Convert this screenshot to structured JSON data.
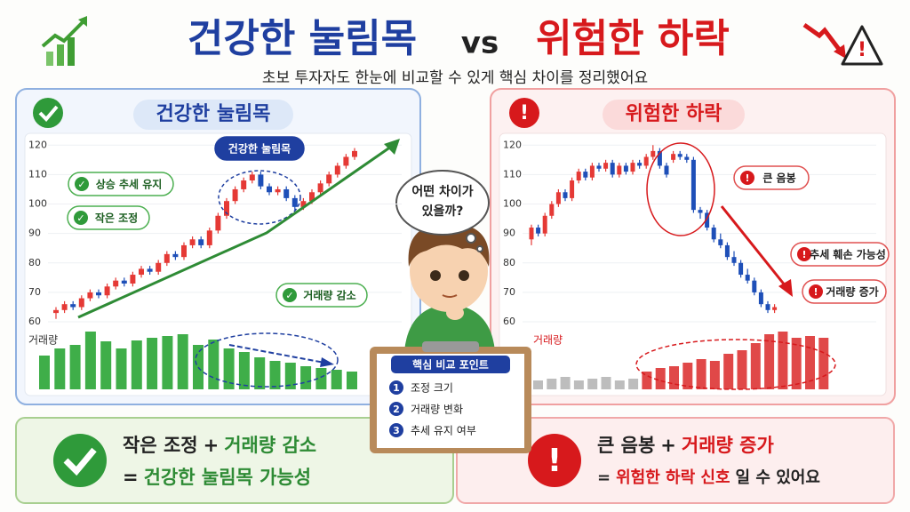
{
  "header": {
    "title_left": "건강한 눌림목",
    "vs": "vs",
    "title_right": "위험한 하락",
    "subtitle": "초보 투자자도 한눈에 비교할 수 있게 핵심 차이를 정리했어요"
  },
  "chart_data": [
    {
      "type": "candlestick",
      "title": "건강한 눌림목",
      "ylim": [
        57,
        124
      ],
      "yticks": [
        60,
        70,
        80,
        90,
        100,
        110,
        120
      ],
      "up_color": "#e53935",
      "down_color": "#1e4fb8",
      "ohlc": [
        [
          63,
          65,
          61,
          64
        ],
        [
          64,
          67,
          63,
          66
        ],
        [
          66,
          67,
          64,
          65
        ],
        [
          65,
          69,
          64,
          68
        ],
        [
          68,
          71,
          67,
          70
        ],
        [
          70,
          71,
          68,
          69
        ],
        [
          69,
          73,
          68,
          72
        ],
        [
          72,
          75,
          71,
          74
        ],
        [
          74,
          75,
          72,
          73
        ],
        [
          73,
          77,
          72,
          76
        ],
        [
          76,
          79,
          75,
          78
        ],
        [
          78,
          79,
          76,
          77
        ],
        [
          77,
          81,
          76,
          80
        ],
        [
          80,
          84,
          79,
          83
        ],
        [
          83,
          84,
          81,
          82
        ],
        [
          82,
          87,
          81,
          86
        ],
        [
          86,
          89,
          85,
          88
        ],
        [
          88,
          89,
          85,
          86
        ],
        [
          86,
          92,
          85,
          91
        ],
        [
          91,
          97,
          90,
          96
        ],
        [
          96,
          102,
          95,
          101
        ],
        [
          101,
          106,
          100,
          105
        ],
        [
          105,
          109,
          104,
          108
        ],
        [
          108,
          111,
          107,
          110
        ],
        [
          110,
          111,
          105,
          106
        ],
        [
          106,
          107,
          103,
          104
        ],
        [
          104,
          106,
          103,
          105
        ],
        [
          105,
          106,
          101,
          102
        ],
        [
          102,
          103,
          98,
          99
        ],
        [
          99,
          102,
          98,
          101
        ],
        [
          101,
          105,
          100,
          104
        ],
        [
          104,
          108,
          103,
          107
        ],
        [
          107,
          111,
          106,
          110
        ],
        [
          110,
          114,
          109,
          113
        ],
        [
          113,
          117,
          112,
          116
        ],
        [
          116,
          119,
          115,
          118
        ]
      ],
      "volume_label": "거래량",
      "volume": [
        {
          "color": "#3fae49",
          "values": [
            38,
            46,
            50,
            65,
            54,
            46,
            55,
            58,
            60,
            62,
            50,
            56,
            46,
            42,
            36,
            32,
            30,
            26,
            24,
            22,
            20
          ]
        }
      ],
      "annotations": [
        "상승 추세 유지",
        "작은 조정",
        "건강한 눌림목",
        "거래량 감소"
      ]
    },
    {
      "type": "candlestick",
      "title": "위험한 하락",
      "ylim": [
        57,
        124
      ],
      "yticks": [
        60,
        70,
        80,
        90,
        100,
        110,
        120
      ],
      "up_color": "#e53935",
      "down_color": "#1e4fb8",
      "ohlc": [
        [
          88,
          93,
          86,
          92
        ],
        [
          92,
          93,
          89,
          90
        ],
        [
          90,
          97,
          89,
          96
        ],
        [
          96,
          101,
          95,
          100
        ],
        [
          100,
          105,
          99,
          104
        ],
        [
          104,
          105,
          101,
          102
        ],
        [
          102,
          109,
          101,
          108
        ],
        [
          108,
          112,
          107,
          111
        ],
        [
          111,
          112,
          108,
          109
        ],
        [
          109,
          114,
          108,
          113
        ],
        [
          113,
          114,
          111,
          112
        ],
        [
          112,
          115,
          111,
          114
        ],
        [
          114,
          115,
          109,
          110
        ],
        [
          110,
          114,
          109,
          113
        ],
        [
          113,
          114,
          110,
          111
        ],
        [
          111,
          115,
          110,
          114
        ],
        [
          114,
          115,
          112,
          113
        ],
        [
          113,
          117,
          112,
          116
        ],
        [
          116,
          120,
          115,
          118
        ],
        [
          118,
          119,
          112,
          113
        ],
        [
          113,
          114,
          109,
          110
        ],
        [
          115,
          118,
          114,
          117
        ],
        [
          117,
          118,
          115,
          116
        ],
        [
          116,
          117,
          114,
          115
        ],
        [
          115,
          116,
          97,
          98
        ],
        [
          98,
          99,
          95,
          97
        ],
        [
          97,
          98,
          91,
          92
        ],
        [
          92,
          93,
          87,
          88
        ],
        [
          88,
          90,
          85,
          86
        ],
        [
          86,
          87,
          81,
          82
        ],
        [
          82,
          84,
          79,
          80
        ],
        [
          80,
          81,
          75,
          76
        ],
        [
          76,
          78,
          73,
          74
        ],
        [
          74,
          75,
          69,
          70
        ],
        [
          70,
          71,
          65,
          66
        ],
        [
          66,
          67,
          63,
          64
        ],
        [
          64,
          66,
          63,
          65
        ]
      ],
      "volume_label": "거래량",
      "volume": [
        {
          "color": "#bdbdbd",
          "values": [
            10,
            12,
            14,
            10,
            12,
            14,
            10,
            12
          ]
        },
        {
          "color": "#e04848",
          "values": [
            20,
            24,
            26,
            30,
            34,
            32,
            40,
            44,
            52,
            62,
            65,
            58,
            60,
            58
          ]
        }
      ],
      "annotations": [
        "큰 음봉",
        "추세 훼손 가능성",
        "거래량 증가"
      ]
    }
  ],
  "center": {
    "question": [
      "어떤 차이가",
      "있을까?"
    ],
    "board_title": "핵심 비교 포인트",
    "points": [
      {
        "num": 1,
        "text": "조정 크기"
      },
      {
        "num": 2,
        "text": "거래량 변화"
      },
      {
        "num": 3,
        "text": "추세 유지 여부"
      }
    ]
  },
  "summary": {
    "left": {
      "line1": [
        "작은 조정",
        "+",
        "거래량 감소"
      ],
      "line2": [
        "=",
        "건강한 눌림목 가능성"
      ]
    },
    "right": {
      "line1": [
        "큰 음봉",
        "+",
        "거래량 증가"
      ],
      "line2": [
        "=",
        "위험한 하락 신호",
        "일 수 있어요"
      ]
    }
  }
}
